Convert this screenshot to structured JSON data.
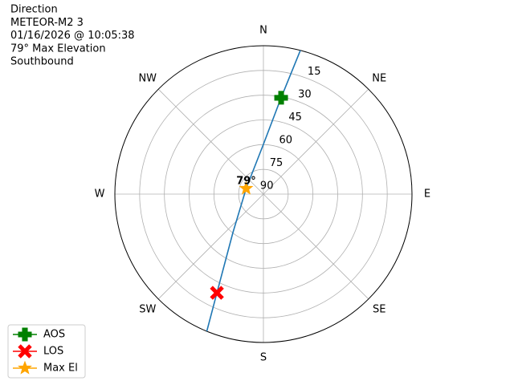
{
  "chart_data": {
    "type": "polar",
    "title_lines": [
      "Direction",
      "METEOR-M2 3",
      "01/16/2026 @ 10:05:38",
      "79° Max Elevation",
      "Southbound"
    ],
    "direction_labels": [
      "N",
      "NE",
      "E",
      "SE",
      "S",
      "SW",
      "W",
      "NW"
    ],
    "ylim": [
      90,
      0
    ],
    "yticks": [
      15,
      30,
      45,
      60,
      75,
      90
    ],
    "grid": true,
    "track": {
      "color": "#1f77b4",
      "azimuth": [
        14.4,
        10.4,
        0,
        288,
        218.4,
        205.2,
        202.4
      ],
      "elevation": [
        0,
        30.6,
        59.8,
        79,
        60.2,
        23.8,
        0
      ]
    },
    "series": [
      {
        "name": "AOS",
        "color": "#008000",
        "marker": "plus",
        "azimuth": [
          10.4
        ],
        "elevation": [
          30.6
        ]
      },
      {
        "name": "LOS",
        "color": "#ff0000",
        "marker": "x",
        "azimuth": [
          205.2
        ],
        "elevation": [
          23.8
        ]
      },
      {
        "name": "Max El",
        "color": "#ffa500",
        "marker": "star",
        "azimuth": [
          288
        ],
        "elevation": [
          79
        ]
      }
    ],
    "annotation": "79°",
    "legend": "lower left"
  }
}
